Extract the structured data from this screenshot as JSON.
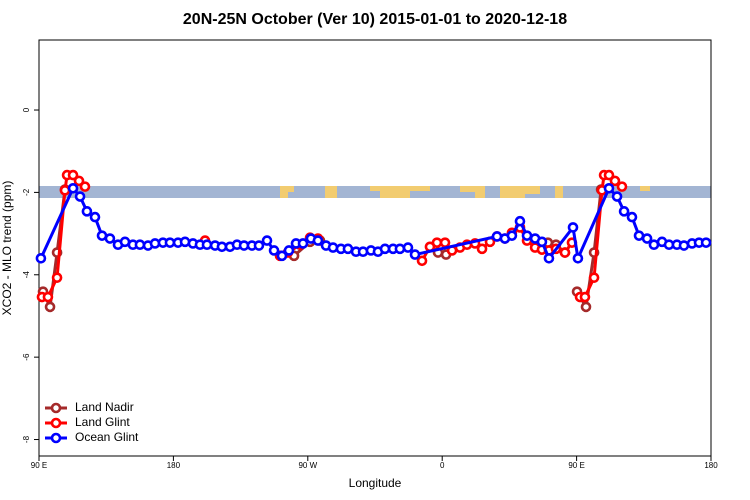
{
  "chart_data": {
    "type": "line",
    "title": "20N-25N October (Ver 10)   2015-01-01 to 2020-12-18",
    "x_label": "Longitude",
    "y_label": "XCO2 - MLO trend (ppm)",
    "xlim": [
      90,
      540
    ],
    "ylim": [
      -8.4,
      1.7
    ],
    "xticks": [
      {
        "value": 90,
        "label": "90 E"
      },
      {
        "value": 180,
        "label": "180"
      },
      {
        "value": 270,
        "label": "90 W"
      },
      {
        "value": 360,
        "label": "0"
      },
      {
        "value": 450,
        "label": "90 E"
      },
      {
        "value": 540,
        "label": "180"
      }
    ],
    "yticks": [
      0,
      -2,
      -4,
      -6,
      -8
    ],
    "legend": "bottom-left",
    "series": [
      {
        "name": "Land Nadir",
        "color": "#a52a2a",
        "x": [
          92.7,
          97.4,
          102.1,
          107.4,
          null,
          260.8,
          271.5,
          278.2,
          null,
          357.2,
          362.6,
          null,
          430.8,
          436.2,
          442.2,
          null,
          450.3,
          456.3,
          461.7,
          466.4
        ],
        "values": [
          -4.41,
          -4.78,
          -3.46,
          -1.93,
          null,
          -3.54,
          -3.2,
          -3.17,
          null,
          -3.46,
          -3.51,
          null,
          -3.22,
          -3.27,
          -3.46,
          null,
          -4.41,
          -4.78,
          -3.46,
          -1.93
        ]
      },
      {
        "name": "Land Glint",
        "color": "#ff0000",
        "x": [
          92,
          96,
          102.1,
          107.4,
          108.8,
          112.8,
          116.8,
          120.8,
          null,
          201.2,
          null,
          251.4,
          256.7,
          264.8,
          271.5,
          276.8,
          null,
          346.5,
          351.8,
          356.5,
          361.9,
          366.6,
          371.9,
          376.6,
          382,
          386.7,
          392,
          396.7,
          402,
          406.7,
          412.1,
          416.8,
          422.2,
          426.8,
          431.5,
          436.2,
          442.2,
          446.9,
          null,
          452.3,
          455.6,
          461.7,
          467,
          468.4,
          471.7,
          475.7,
          480.4
        ],
        "values": [
          -4.54,
          -4.54,
          -4.07,
          -1.95,
          -1.58,
          -1.58,
          -1.72,
          -1.86,
          null,
          -3.17,
          null,
          -3.54,
          -3.46,
          -3.27,
          -3.1,
          -3.12,
          null,
          -3.66,
          -3.32,
          -3.22,
          -3.22,
          -3.41,
          -3.34,
          -3.27,
          -3.24,
          -3.37,
          -3.2,
          -3.07,
          -3.12,
          -2.98,
          -2.85,
          -3.17,
          -3.34,
          -3.39,
          -3.41,
          -3.37,
          -3.46,
          -3.22,
          null,
          -4.54,
          -4.54,
          -4.07,
          -1.95,
          -1.58,
          -1.58,
          -1.72,
          -1.86
        ]
      },
      {
        "name": "Ocean Glint",
        "color": "#0000ff",
        "x": [
          91.3,
          112.8,
          117.5,
          122.1,
          127.5,
          132.2,
          137.5,
          142.9,
          147.6,
          152.9,
          157.6,
          163,
          167.7,
          173,
          177.7,
          183.1,
          187.8,
          193.1,
          197.8,
          202.5,
          207.9,
          212.5,
          217.9,
          222.6,
          227.3,
          232.6,
          237.3,
          242.7,
          247.4,
          252.7,
          257.4,
          262.1,
          266.8,
          272.1,
          276.8,
          282.2,
          286.9,
          292.2,
          296.9,
          302.3,
          307,
          312.3,
          317,
          321.7,
          327.1,
          331.7,
          337.1,
          341.8,
          396.7,
          402,
          406.7,
          412.1,
          416.8,
          422.2,
          426.8,
          431.5,
          447.6,
          450.9,
          471.7,
          477.1,
          481.8,
          487.1,
          491.8,
          497.2,
          501.8,
          507.2,
          511.9,
          517.2,
          521.9,
          527.3,
          532,
          536.7
        ],
        "values": [
          -3.6,
          -1.9,
          -2.1,
          -2.46,
          -2.6,
          -3.05,
          -3.12,
          -3.27,
          -3.2,
          -3.27,
          -3.27,
          -3.29,
          -3.24,
          -3.22,
          -3.22,
          -3.22,
          -3.2,
          -3.24,
          -3.27,
          -3.27,
          -3.29,
          -3.32,
          -3.32,
          -3.27,
          -3.29,
          -3.29,
          -3.29,
          -3.17,
          -3.41,
          -3.54,
          -3.41,
          -3.24,
          -3.24,
          -3.12,
          -3.17,
          -3.29,
          -3.34,
          -3.37,
          -3.37,
          -3.44,
          -3.44,
          -3.41,
          -3.44,
          -3.37,
          -3.37,
          -3.37,
          -3.34,
          -3.51,
          -3.07,
          -3.12,
          -3.05,
          -2.7,
          -3.05,
          -3.12,
          -3.2,
          -3.6,
          -2.85,
          -3.6,
          -1.9,
          -2.1,
          -2.46,
          -2.6,
          -3.05,
          -3.12,
          -3.27,
          -3.2,
          -3.27,
          -3.27,
          -3.29,
          -3.24,
          -3.22,
          -3.22
        ]
      }
    ]
  }
}
